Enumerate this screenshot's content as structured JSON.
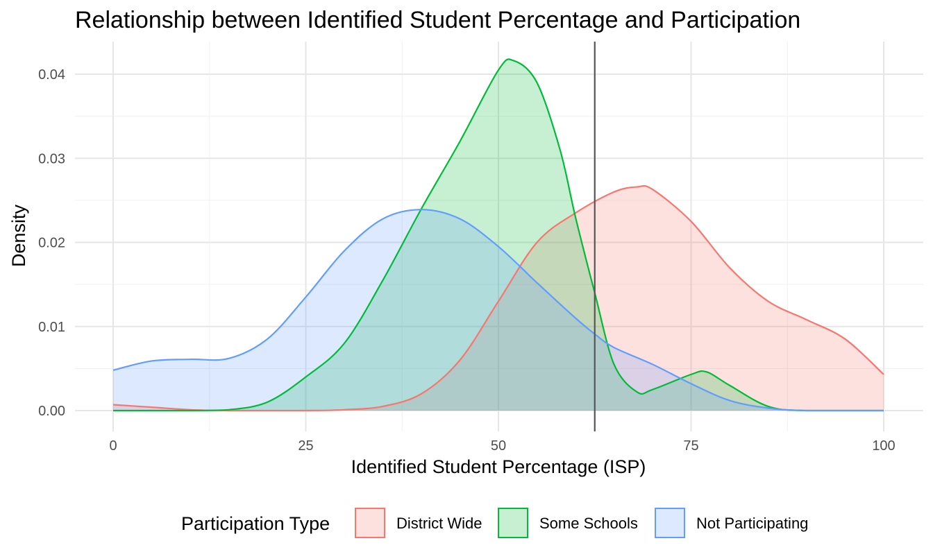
{
  "chart_data": {
    "type": "area",
    "title": "Relationship between Identified Student Percentage and Participation",
    "xlabel": "Identified Student Percentage (ISP)",
    "ylabel": "Density",
    "xlim": [
      0,
      100
    ],
    "ylim": [
      0,
      0.04
    ],
    "x_ticks": [
      0,
      25,
      50,
      75,
      100
    ],
    "x_tick_labels": [
      "0",
      "25",
      "50",
      "75",
      "100"
    ],
    "y_ticks": [
      0,
      0.01,
      0.02,
      0.03,
      0.04
    ],
    "y_tick_labels": [
      "0.00",
      "0.01",
      "0.02",
      "0.03",
      "0.04"
    ],
    "grid": true,
    "legend": {
      "title": "Participation Type",
      "position": "bottom"
    },
    "reference_line": {
      "x": 62.5,
      "color": "#555555"
    },
    "series": [
      {
        "name": "District Wide",
        "color": "#F8766D",
        "x": [
          0,
          5,
          10,
          15,
          20,
          25,
          30,
          35,
          40,
          45,
          50,
          55,
          60,
          65,
          68,
          70,
          75,
          80,
          85,
          90,
          95,
          100
        ],
        "y": [
          0.0007,
          0.0004,
          0.0001,
          0.0,
          0.0,
          0.0,
          0.0001,
          0.0005,
          0.002,
          0.006,
          0.013,
          0.02,
          0.0235,
          0.026,
          0.0266,
          0.0263,
          0.0225,
          0.017,
          0.013,
          0.0108,
          0.0085,
          0.0043
        ]
      },
      {
        "name": "Some Schools",
        "color": "#00BA38",
        "x": [
          0,
          10,
          15,
          20,
          25,
          30,
          35,
          40,
          45,
          50,
          52,
          55,
          58,
          60,
          62.5,
          65,
          68,
          70,
          75,
          77,
          80,
          85,
          90,
          100
        ],
        "y": [
          0.0,
          0.0,
          0.0001,
          0.001,
          0.004,
          0.008,
          0.0155,
          0.024,
          0.032,
          0.0405,
          0.0416,
          0.039,
          0.031,
          0.023,
          0.014,
          0.0055,
          0.0022,
          0.0025,
          0.0043,
          0.0046,
          0.003,
          0.0005,
          0.0,
          0.0
        ]
      },
      {
        "name": "Not Participating",
        "color": "#619CFF",
        "x": [
          0,
          5,
          10,
          15,
          20,
          25,
          30,
          35,
          40,
          45,
          50,
          55,
          60,
          62.5,
          65,
          70,
          75,
          80,
          85,
          90,
          100
        ],
        "y": [
          0.0048,
          0.0059,
          0.0061,
          0.0062,
          0.0085,
          0.0135,
          0.019,
          0.0228,
          0.0239,
          0.0228,
          0.0195,
          0.0152,
          0.011,
          0.0091,
          0.0075,
          0.0055,
          0.0032,
          0.0012,
          0.0003,
          0.0,
          0.0
        ]
      }
    ]
  }
}
